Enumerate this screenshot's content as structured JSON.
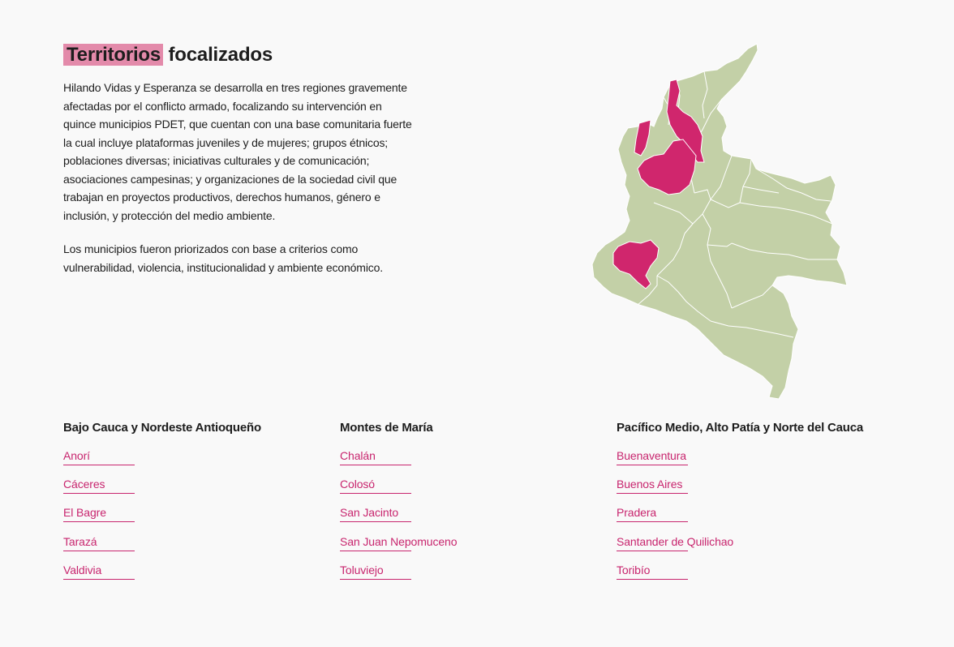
{
  "header": {
    "title_highlight": "Territorios",
    "title_rest": "focalizados"
  },
  "intro": {
    "paragraph_1": "Hilando Vidas y Esperanza se desarrolla en tres regiones gravemente afectadas por el conflicto armado, focalizando su intervención en quince municipios PDET, que cuentan con una base comunitaria fuerte la cual incluye plataformas juveniles y de mujeres; grupos étnicos; poblaciones diversas; iniciativas culturales y de comunicación; asociaciones campesinas; y organizaciones de la sociedad civil que trabajan en proyectos productivos, derechos humanos, género e inclusión, y protección del medio ambiente.",
    "paragraph_2": "Los municipios fueron priorizados con base a criterios como vulnerabilidad, violencia, institucionalidad y ambiente económico."
  },
  "map": {
    "base_color": "#c3d0a7",
    "highlight_color": "#d0266d",
    "border_color": "#ffffff"
  },
  "regions": [
    {
      "name": "Bajo Cauca y Nordeste Antioqueño",
      "municipalities": [
        "Anorí",
        "Cáceres",
        "El Bagre",
        "Tarazá",
        "Valdivia"
      ]
    },
    {
      "name": "Montes de María",
      "municipalities": [
        "Chalán",
        "Colosó",
        "San Jacinto",
        "San Juan Nepomuceno",
        "Toluviejo"
      ]
    },
    {
      "name": "Pacífico Medio, Alto Patía y Norte del Cauca",
      "municipalities": [
        "Buenaventura",
        "Buenos Aires",
        "Pradera",
        "Santander de Quilichao",
        "Toribío"
      ]
    }
  ],
  "theme": {
    "accent": "#c8256e",
    "title_highlight_bg": "#e38aaa",
    "background": "#f9f9f9"
  }
}
